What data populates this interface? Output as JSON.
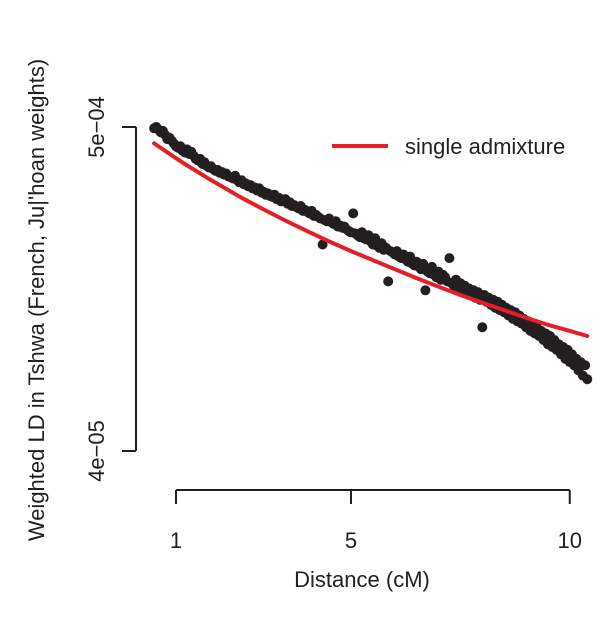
{
  "chart_data": {
    "type": "scatter",
    "xlabel": "Distance (cM)",
    "ylabel": "Weighted LD in Tshwa (French, Ju|'hoan weights)",
    "xlim": [
      0.5,
      10.4
    ],
    "ylim": [
      4e-05,
      0.0005
    ],
    "x_ticks": [
      1,
      5,
      10
    ],
    "x_tick_labels": [
      "1",
      "5",
      "10"
    ],
    "y_ticks": [
      4e-05,
      0.0005
    ],
    "y_tick_labels": [
      "4e−05",
      "5e−04"
    ],
    "grid": false,
    "legend": {
      "position": "top-right",
      "entries": [
        "single admixture"
      ]
    },
    "colors": {
      "points": "#231f20",
      "fit": "#e41f26",
      "axis": "#231f20"
    },
    "series": [
      {
        "kind": "points",
        "x": [
          0.5,
          0.55,
          0.6,
          0.65,
          0.7,
          0.75,
          0.8,
          0.85,
          0.9,
          0.95,
          1.0,
          1.05,
          1.1,
          1.15,
          1.2,
          1.25,
          1.3,
          1.35,
          1.4,
          1.45,
          1.5,
          1.55,
          1.6,
          1.65,
          1.7,
          1.75,
          1.8,
          1.85,
          1.9,
          1.95,
          2.0,
          2.05,
          2.1,
          2.15,
          2.2,
          2.25,
          2.3,
          2.35,
          2.4,
          2.45,
          2.5,
          2.55,
          2.6,
          2.65,
          2.7,
          2.75,
          2.8,
          2.85,
          2.9,
          2.95,
          3.0,
          3.05,
          3.1,
          3.15,
          3.2,
          3.25,
          3.3,
          3.35,
          3.4,
          3.45,
          3.5,
          3.55,
          3.6,
          3.65,
          3.7,
          3.75,
          3.8,
          3.85,
          3.9,
          3.95,
          4.0,
          4.05,
          4.1,
          4.15,
          4.2,
          4.25,
          4.3,
          4.35,
          4.4,
          4.45,
          4.5,
          4.55,
          4.6,
          4.65,
          4.7,
          4.75,
          4.8,
          4.85,
          4.9,
          4.95,
          5.0,
          5.05,
          5.1,
          5.15,
          5.2,
          5.25,
          5.3,
          5.35,
          5.4,
          5.45,
          5.5,
          5.55,
          5.6,
          5.65,
          5.7,
          5.75,
          5.8,
          5.85,
          5.9,
          5.95,
          6.0,
          6.05,
          6.1,
          6.15,
          6.2,
          6.25,
          6.3,
          6.35,
          6.4,
          6.45,
          6.5,
          6.55,
          6.6,
          6.65,
          6.7,
          6.75,
          6.8,
          6.85,
          6.9,
          6.95,
          7.0,
          7.05,
          7.1,
          7.15,
          7.2,
          7.25,
          7.3,
          7.35,
          7.4,
          7.45,
          7.5,
          7.55,
          7.6,
          7.65,
          7.7,
          7.75,
          7.8,
          7.85,
          7.9,
          7.95,
          8.0,
          8.05,
          8.1,
          8.15,
          8.2,
          8.25,
          8.3,
          8.35,
          8.4,
          8.45,
          8.5,
          8.55,
          8.6,
          8.65,
          8.7,
          8.75,
          8.8,
          8.85,
          8.9,
          8.95,
          9.0,
          9.05,
          9.1,
          9.15,
          9.2,
          9.25,
          9.3,
          9.35,
          9.4,
          9.45,
          9.5,
          9.55,
          9.6,
          9.65,
          9.7,
          9.75,
          9.8,
          9.85,
          9.9,
          9.95,
          10.0,
          10.05,
          10.1,
          10.15,
          10.2,
          10.25,
          10.3,
          10.35,
          10.4
        ],
        "y": [
          0.000495,
          0.0005,
          0.00049,
          0.00048,
          0.000485,
          0.00047,
          0.000455,
          0.00046,
          0.00045,
          0.00044,
          0.00043,
          0.000425,
          0.00043,
          0.000415,
          0.00041,
          0.00042,
          0.000405,
          0.000412,
          0.0004,
          0.00039,
          0.000385,
          0.00039,
          0.000375,
          0.00038,
          0.00037,
          0.000365,
          0.000368,
          0.00036,
          0.000355,
          0.000358,
          0.00035,
          0.000352,
          0.000345,
          0.000348,
          0.00034,
          0.000338,
          0.000335,
          0.000342,
          0.00033,
          0.000325,
          0.00033,
          0.00032,
          0.000322,
          0.000315,
          0.000318,
          0.00031,
          0.000312,
          0.000305,
          0.00031,
          0.0003,
          0.000302,
          0.000295,
          0.000298,
          0.000292,
          0.00029,
          0.000295,
          0.000285,
          0.000288,
          0.00028,
          0.000282,
          0.000285,
          0.000275,
          0.000278,
          0.00027,
          0.000272,
          0.000268,
          0.000265,
          0.00027,
          0.00026,
          0.000262,
          0.000258,
          0.000255,
          0.00026,
          0.00025,
          0.000252,
          0.000248,
          0.000245,
          0.0002,
          0.000242,
          0.00024,
          0.000245,
          0.000238,
          0.000235,
          0.00024,
          0.00023,
          0.000232,
          0.000228,
          0.00023,
          0.000225,
          0.000222,
          0.00022,
          0.000255,
          0.000218,
          0.000215,
          0.000212,
          0.00022,
          0.00021,
          0.000208,
          0.000215,
          0.000205,
          0.0002,
          0.00021,
          0.000198,
          0.000195,
          0.000202,
          0.000192,
          0.000195,
          0.00015,
          0.00019,
          0.000188,
          0.000185,
          0.00019,
          0.000182,
          0.00018,
          0.000185,
          0.000178,
          0.000175,
          0.000182,
          0.000172,
          0.00017,
          0.000175,
          0.000168,
          0.000165,
          0.000172,
          0.00014,
          0.000162,
          0.00016,
          0.000168,
          0.000158,
          0.000155,
          0.000162,
          0.000152,
          0.000158,
          0.000155,
          0.00015,
          0.00018,
          0.000148,
          0.000145,
          0.000152,
          0.000142,
          0.000148,
          0.00014,
          0.000145,
          0.000138,
          0.000142,
          0.000135,
          0.00014,
          0.000132,
          0.000138,
          0.00013,
          0.000105,
          0.000135,
          0.000128,
          0.000132,
          0.000125,
          0.00013,
          0.000122,
          0.000128,
          0.00012,
          0.000125,
          0.000118,
          0.000122,
          0.000115,
          0.00012,
          0.000112,
          0.000118,
          0.00011,
          0.000115,
          0.000108,
          0.000112,
          0.000105,
          0.00011,
          0.000102,
          0.000108,
          0.0001,
          0.000105,
          9.8e-05,
          0.000102,
          9.5e-05,
          0.0001,
          9.2e-05,
          9.8e-05,
          9e-05,
          9.5e-05,
          8.8e-05,
          9.2e-05,
          8.5e-05,
          9e-05,
          8.2e-05,
          8.8e-05,
          8e-05,
          8.5e-05,
          7.8e-05,
          8.2e-05,
          7.5e-05,
          8e-05,
          7.2e-05,
          7.8e-05,
          7e-05
        ]
      },
      {
        "kind": "line",
        "name": "single admixture",
        "x": [
          0.5,
          0.75,
          1.0,
          1.25,
          1.5,
          1.75,
          2.0,
          2.5,
          3.0,
          3.5,
          4.0,
          4.5,
          5.0,
          5.5,
          6.0,
          6.5,
          7.0,
          7.5,
          8.0,
          8.5,
          9.0,
          9.5,
          10.0,
          10.4
        ],
        "y": [
          0.00044,
          0.000415,
          0.000392,
          0.000371,
          0.000352,
          0.000334,
          0.000318,
          0.000288,
          0.000263,
          0.000241,
          0.000222,
          0.000205,
          0.00019,
          0.000177,
          0.000165,
          0.000154,
          0.000144,
          0.000135,
          0.000127,
          0.00012,
          0.000113,
          0.000107,
          0.000102,
          9.8e-05
        ]
      }
    ]
  }
}
